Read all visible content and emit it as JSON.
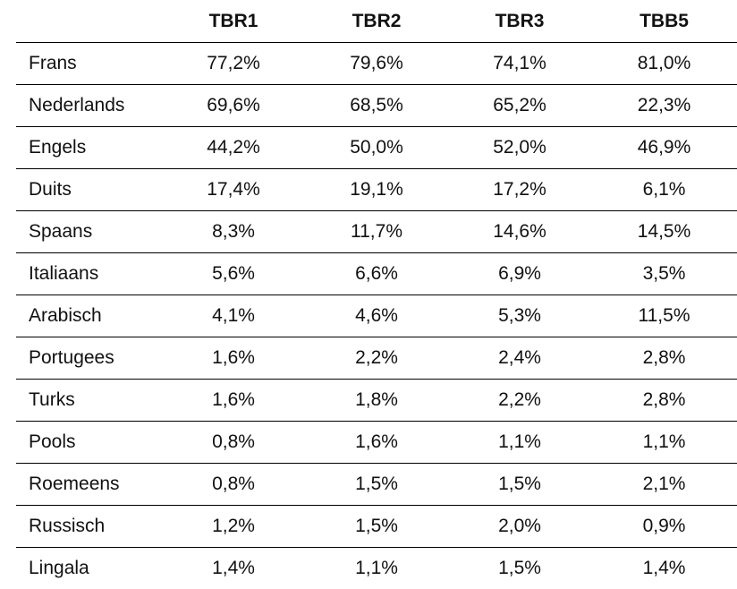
{
  "table": {
    "headers": [
      "",
      "TBR1",
      "TBR2",
      "TBR3",
      "TBB5"
    ],
    "rows": [
      {
        "language": "Frans",
        "values": [
          "77,2%",
          "79,6%",
          "74,1%",
          "81,0%"
        ]
      },
      {
        "language": "Nederlands",
        "values": [
          "69,6%",
          "68,5%",
          "65,2%",
          "22,3%"
        ]
      },
      {
        "language": "Engels",
        "values": [
          "44,2%",
          "50,0%",
          "52,0%",
          "46,9%"
        ]
      },
      {
        "language": "Duits",
        "values": [
          "17,4%",
          "19,1%",
          "17,2%",
          "6,1%"
        ]
      },
      {
        "language": "Spaans",
        "values": [
          "8,3%",
          "11,7%",
          "14,6%",
          "14,5%"
        ]
      },
      {
        "language": "Italiaans",
        "values": [
          "5,6%",
          "6,6%",
          "6,9%",
          "3,5%"
        ]
      },
      {
        "language": "Arabisch",
        "values": [
          "4,1%",
          "4,6%",
          "5,3%",
          "11,5%"
        ]
      },
      {
        "language": "Portugees",
        "values": [
          "1,6%",
          "2,2%",
          "2,4%",
          "2,8%"
        ]
      },
      {
        "language": "Turks",
        "values": [
          "1,6%",
          "1,8%",
          "2,2%",
          "2,8%"
        ]
      },
      {
        "language": "Pools",
        "values": [
          "0,8%",
          "1,6%",
          "1,1%",
          "1,1%"
        ]
      },
      {
        "language": "Roemeens",
        "values": [
          "0,8%",
          "1,5%",
          "1,5%",
          "2,1%"
        ]
      },
      {
        "language": "Russisch",
        "values": [
          "1,2%",
          "1,5%",
          "2,0%",
          "0,9%"
        ]
      },
      {
        "language": "Lingala",
        "values": [
          "1,4%",
          "1,1%",
          "1,5%",
          "1,4%"
        ]
      }
    ]
  }
}
